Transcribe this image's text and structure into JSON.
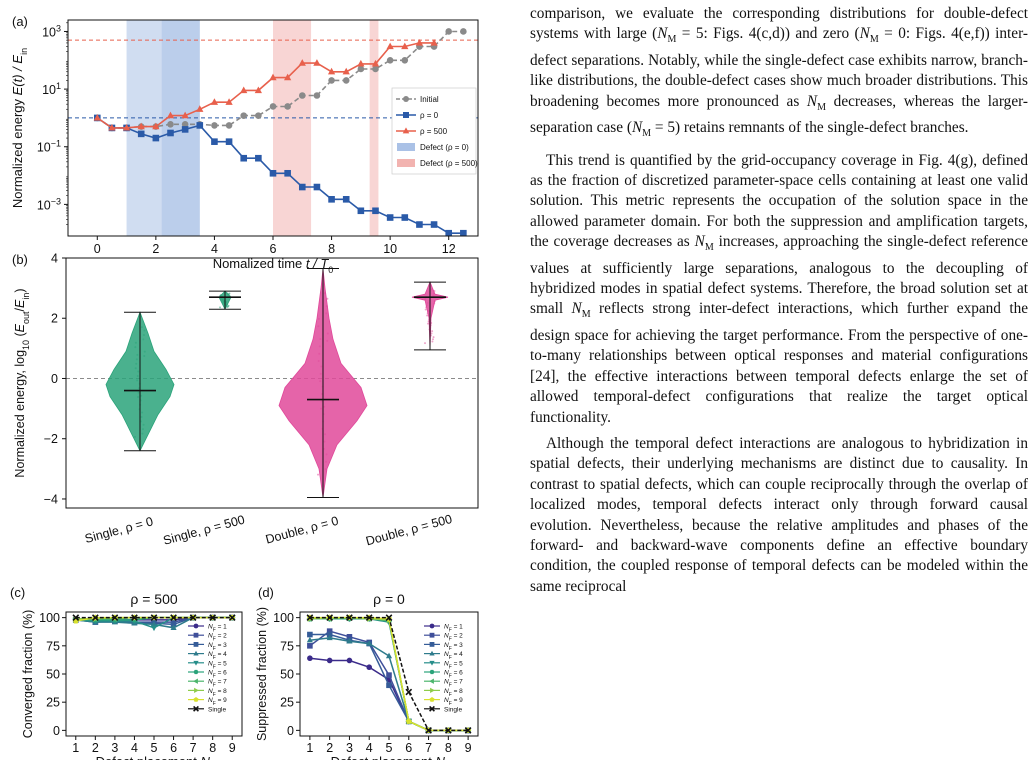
{
  "panels": {
    "a": {
      "label": "(a)",
      "ylabel_main": "Normalized energy",
      "ylabel_math": "E(t) / E",
      "ylabel_sub": "in",
      "xlabel_main": "Nomalized time",
      "xlabel_math": "t / T",
      "xlabel_sub": "0",
      "xticks": [
        "0",
        "2",
        "4",
        "6",
        "8",
        "10",
        "12"
      ],
      "yticks": [
        {
          "base": "10",
          "exp": "3"
        },
        {
          "base": "10",
          "exp": "1"
        },
        {
          "base": "10",
          "exp": "−1"
        },
        {
          "base": "10",
          "exp": "−3"
        }
      ],
      "legend": [
        "Initial",
        "ρ = 0",
        "ρ = 500",
        "Defect (ρ = 0)",
        "Defect (ρ = 500)"
      ]
    },
    "b": {
      "label": "(b)",
      "ylabel": "Normalized energy, log",
      "ylabel_sub": "10",
      "ylabel_tail": "(E",
      "ylabel_out": "out",
      "ylabel_mid": "/E",
      "ylabel_in": "in",
      "ylabel_end": ")",
      "yticks": [
        "4",
        "2",
        "0",
        "−2",
        "−4"
      ],
      "categories": [
        "Single, ρ = 0",
        "Single, ρ = 500",
        "Double, ρ = 0",
        "Double, ρ = 500"
      ]
    },
    "c": {
      "label": "(c)",
      "title": "ρ = 500",
      "ylabel": "Converged fraction (%)",
      "xlabel_main": "Defect placement",
      "xlabel_var": "N",
      "xlabel_sub": "I",
      "xticks": [
        "1",
        "2",
        "3",
        "4",
        "5",
        "6",
        "7",
        "8",
        "9"
      ],
      "yticks": [
        "100",
        "75",
        "50",
        "25",
        "0"
      ]
    },
    "d": {
      "label": "(d)",
      "title": "ρ = 0",
      "ylabel": "Suppressed fraction (%)",
      "xlabel_main": "Defect placement",
      "xlabel_var": "N",
      "xlabel_sub": "I",
      "xticks": [
        "1",
        "2",
        "3",
        "4",
        "5",
        "6",
        "7",
        "8",
        "9"
      ],
      "yticks": [
        "100",
        "75",
        "50",
        "25",
        "0"
      ]
    },
    "legend_cd": [
      "N_F = 1",
      "N_F = 2",
      "N_F = 3",
      "N_F = 4",
      "N_F = 5",
      "N_F = 6",
      "N_F = 7",
      "N_F = 8",
      "N_F = 9",
      "Single"
    ]
  },
  "chart_data": [
    {
      "type": "line",
      "panel": "a",
      "xlabel": "Nomalized time t / T0",
      "ylabel": "Normalized energy E(t) / Ein",
      "yscale": "log",
      "xlim": [
        -1,
        13
      ],
      "ylim": [
        8e-05,
        2500
      ],
      "grid": false,
      "legend_position": "center-right",
      "hlines": [
        {
          "y": 1,
          "color": "#2a5aa8"
        },
        {
          "y": 500,
          "color": "#e8604c"
        }
      ],
      "shaded_regions": [
        {
          "name": "Defect (ρ = 0)",
          "color": "#aac1e6",
          "ranges": [
            [
              1.0,
              3.5
            ],
            [
              2.2,
              3.5
            ]
          ]
        },
        {
          "name": "Defect (ρ = 500)",
          "color": "#f2b3b0",
          "ranges": [
            [
              6.0,
              7.3
            ],
            [
              9.3,
              9.6
            ]
          ]
        }
      ],
      "series": [
        {
          "name": "Initial",
          "color": "#8a8a8a",
          "dashed": true,
          "marker": "circle",
          "x": [
            0,
            0.5,
            1,
            1.5,
            2,
            2.5,
            3,
            3.5,
            4,
            4.5,
            5,
            5.5,
            6,
            6.5,
            7,
            7.5,
            8,
            8.5,
            9,
            9.5,
            10,
            10.5,
            11,
            11.5,
            12,
            12.5
          ],
          "y": [
            1,
            0.45,
            0.45,
            0.5,
            0.5,
            0.6,
            0.6,
            0.6,
            0.55,
            0.55,
            1.2,
            1.2,
            2.5,
            2.5,
            6,
            6,
            20,
            20,
            50,
            50,
            100,
            100,
            300,
            300,
            1000,
            1000
          ]
        },
        {
          "name": "ρ = 0",
          "color": "#2a5aa8",
          "dashed": false,
          "marker": "square",
          "x": [
            0,
            0.5,
            1,
            1.5,
            2,
            2.5,
            3,
            3.5,
            4,
            4.5,
            5,
            5.5,
            6,
            6.5,
            7,
            7.5,
            8,
            8.5,
            9,
            9.5,
            10,
            10.5,
            11,
            11.5,
            12,
            12.5
          ],
          "y": [
            1,
            0.45,
            0.45,
            0.28,
            0.2,
            0.3,
            0.4,
            0.55,
            0.15,
            0.15,
            0.04,
            0.04,
            0.012,
            0.012,
            0.004,
            0.004,
            0.0015,
            0.0015,
            0.0006,
            0.0006,
            0.00035,
            0.00035,
            0.0002,
            0.0002,
            0.0001,
            0.0001
          ]
        },
        {
          "name": "ρ = 500",
          "color": "#e8604c",
          "dashed": false,
          "marker": "triangle",
          "x": [
            0,
            0.5,
            1,
            1.5,
            2,
            2.5,
            3,
            3.5,
            4,
            4.5,
            5,
            5.5,
            6,
            6.5,
            7,
            7.5,
            8,
            8.5,
            9,
            9.5,
            10,
            10.5,
            11,
            11.5
          ],
          "y": [
            1,
            0.45,
            0.45,
            0.5,
            0.5,
            1.2,
            1.2,
            2,
            3.5,
            3.5,
            9,
            9,
            25,
            25,
            80,
            80,
            40,
            40,
            75,
            75,
            300,
            300,
            400,
            400
          ]
        }
      ]
    },
    {
      "type": "violin",
      "panel": "b",
      "ylabel": "Normalized energy, log10(Eout/Ein)",
      "ylim": [
        -4.3,
        4.0
      ],
      "hline": 0,
      "groups": [
        {
          "name": "Single, ρ = 0",
          "color": "#2aa37a",
          "min": -2.4,
          "max": 2.2,
          "median": -0.4
        },
        {
          "name": "Single, ρ = 500",
          "color": "#2aa37a",
          "min": 2.3,
          "max": 2.9,
          "median": 2.7
        },
        {
          "name": "Double, ρ = 0",
          "color": "#e0499a",
          "min": -3.95,
          "max": 3.65,
          "median": -0.7
        },
        {
          "name": "Double, ρ = 500",
          "color": "#e0499a",
          "min": 0.95,
          "max": 3.2,
          "median": 2.7
        }
      ]
    },
    {
      "type": "line",
      "panel": "c",
      "title": "ρ = 500",
      "ylabel": "Converged fraction (%)",
      "xlabel": "Defect placement N_I",
      "ylim": [
        -5,
        105
      ],
      "x": [
        1,
        2,
        3,
        4,
        5,
        6,
        7,
        8,
        9
      ],
      "series": [
        {
          "name": "N_F = 1",
          "values": [
            98,
            98,
            98,
            98,
            98,
            98,
            100,
            100,
            100
          ]
        },
        {
          "name": "N_F = 2",
          "values": [
            98,
            97,
            97,
            96,
            96,
            96,
            100,
            100,
            100
          ]
        },
        {
          "name": "N_F = 3",
          "values": [
            98,
            96,
            97,
            96,
            95,
            94,
            100,
            100,
            100
          ]
        },
        {
          "name": "N_F = 4",
          "values": [
            98,
            96,
            96,
            95,
            94,
            91,
            100,
            100,
            100
          ]
        },
        {
          "name": "N_F = 5",
          "values": [
            98,
            97,
            97,
            97,
            91,
            100,
            100,
            100,
            100
          ]
        },
        {
          "name": "N_F = 6",
          "values": [
            98,
            98,
            98,
            98,
            100,
            100,
            100,
            100,
            100
          ]
        },
        {
          "name": "N_F = 7",
          "values": [
            99,
            99,
            99,
            100,
            100,
            100,
            100,
            100,
            100
          ]
        },
        {
          "name": "N_F = 8",
          "values": [
            99,
            99,
            100,
            100,
            100,
            100,
            100,
            100,
            100
          ]
        },
        {
          "name": "N_F = 9",
          "values": [
            97,
            100,
            100,
            100,
            100,
            100,
            100,
            100,
            100
          ]
        },
        {
          "name": "Single",
          "values": [
            100,
            100,
            100,
            100,
            100,
            100,
            100,
            100,
            100
          ]
        }
      ]
    },
    {
      "type": "line",
      "panel": "d",
      "title": "ρ = 0",
      "ylabel": "Suppressed fraction (%)",
      "xlabel": "Defect placement N_I",
      "ylim": [
        -5,
        105
      ],
      "x": [
        1,
        2,
        3,
        4,
        5,
        6,
        7,
        8,
        9
      ],
      "series": [
        {
          "name": "N_F = 1",
          "values": [
            64,
            62,
            62,
            56,
            45,
            8,
            0,
            0,
            0
          ]
        },
        {
          "name": "N_F = 2",
          "values": [
            75,
            88,
            83,
            78,
            49,
            8,
            0,
            0,
            0
          ]
        },
        {
          "name": "N_F = 3",
          "values": [
            85,
            85,
            80,
            77,
            40,
            8,
            0,
            0,
            0
          ]
        },
        {
          "name": "N_F = 4",
          "values": [
            80,
            82,
            79,
            77,
            66,
            8,
            0,
            0,
            0
          ]
        },
        {
          "name": "N_F = 5",
          "values": [
            99,
            99,
            99,
            99,
            96,
            8,
            0,
            0,
            0
          ]
        },
        {
          "name": "N_F = 6",
          "values": [
            99,
            99,
            99,
            99,
            97,
            8,
            0,
            0,
            0
          ]
        },
        {
          "name": "N_F = 7",
          "values": [
            99,
            99,
            100,
            99,
            98,
            8,
            0,
            0,
            0
          ]
        },
        {
          "name": "N_F = 8",
          "values": [
            99,
            100,
            100,
            99,
            98,
            8,
            0,
            0,
            0
          ]
        },
        {
          "name": "N_F = 9",
          "values": [
            100,
            100,
            100,
            100,
            99,
            8,
            0,
            0,
            0
          ]
        },
        {
          "name": "Single",
          "values": [
            100,
            100,
            100,
            100,
            100,
            34,
            0,
            0,
            0
          ]
        }
      ]
    }
  ],
  "text": {
    "p1": [
      {
        "t": "comparison, we evaluate the corresponding distributions for double-defect systems with large ("
      },
      {
        "i": "N"
      },
      {
        "s": "M"
      },
      {
        "t": " = 5: Figs. 4(c,d)) and zero ("
      },
      {
        "i": "N"
      },
      {
        "s": "M"
      },
      {
        "t": " = 0: Figs. 4(e,f)) inter-defect separations. Notably, while the single-defect case exhibits narrow, branch-like distributions, the double-defect cases show much broader distributions. This broadening becomes more pronounced as "
      },
      {
        "i": "N"
      },
      {
        "s": "M"
      },
      {
        "t": " decreases, whereas the larger-separation case ("
      },
      {
        "i": "N"
      },
      {
        "s": "M"
      },
      {
        "t": " = 5) retains remnants of the single-defect branches."
      }
    ],
    "p2": [
      {
        "t": "This trend is quantified by the grid-occupancy coverage in Fig. 4(g), defined as the fraction of discretized parameter-space cells containing at least one valid solution. This metric represents the occupation of the solution space in the allowed parameter domain. For both the suppression and amplification targets, the coverage decreases as "
      },
      {
        "i": "N"
      },
      {
        "s": "M"
      },
      {
        "t": " increases, approaching the single-defect reference values at sufficiently large separations, analogous to the decoupling of hybridized modes in spatial defect systems. Therefore, the broad solution set at small "
      },
      {
        "i": "N"
      },
      {
        "s": "M"
      },
      {
        "t": " reflects strong inter-defect interactions, which further expand the design space for achieving the target performance. From the perspective of one-to-many relationships between optical responses and material configurations [24], the effective interactions between temporal defects enlarge the set of allowed temporal-defect configurations that realize the target optical functionality."
      }
    ],
    "p3": [
      {
        "t": "Although the temporal defect interactions are analogous to hybridization in spatial defects, their underlying mechanisms are distinct due to causality. In contrast to spatial defects, which can couple reciprocally through the overlap of localized modes, temporal defects interact only through forward causal evolution. Nevertheless, because the relative amplitudes and phases of the forward- and backward-wave components define an effective boundary condition, the coupled response of temporal defects can be modeled within the same reciprocal"
      }
    ]
  }
}
